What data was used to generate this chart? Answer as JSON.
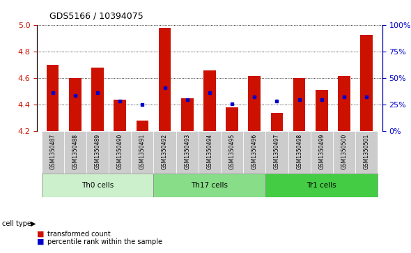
{
  "title": "GDS5166 / 10394075",
  "samples": [
    "GSM1350487",
    "GSM1350488",
    "GSM1350489",
    "GSM1350490",
    "GSM1350491",
    "GSM1350492",
    "GSM1350493",
    "GSM1350494",
    "GSM1350495",
    "GSM1350496",
    "GSM1350497",
    "GSM1350498",
    "GSM1350499",
    "GSM1350500",
    "GSM1350501"
  ],
  "transformed_count": [
    4.7,
    4.6,
    4.68,
    4.44,
    4.28,
    4.98,
    4.45,
    4.66,
    4.38,
    4.62,
    4.34,
    4.6,
    4.51,
    4.62,
    4.93
  ],
  "percentile_rank": [
    4.49,
    4.47,
    4.49,
    4.43,
    4.4,
    4.53,
    4.44,
    4.49,
    4.41,
    4.46,
    4.43,
    4.44,
    4.44,
    4.46,
    4.46
  ],
  "ylim": [
    4.2,
    5.0
  ],
  "yticks": [
    4.2,
    4.4,
    4.6,
    4.8,
    5.0
  ],
  "yticks_right": [
    0,
    25,
    50,
    75,
    100
  ],
  "yticks_right_labels": [
    "0%",
    "25%",
    "50%",
    "75%",
    "100%"
  ],
  "cell_groups": [
    {
      "label": "Th0 cells",
      "start": 0,
      "end": 4,
      "color": "#ccf0cc"
    },
    {
      "label": "Th17 cells",
      "start": 5,
      "end": 9,
      "color": "#88dd88"
    },
    {
      "label": "Tr1 cells",
      "start": 10,
      "end": 14,
      "color": "#44cc44"
    }
  ],
  "bar_color": "#cc1100",
  "dot_color": "#0000cc",
  "bar_width": 0.55,
  "background_color": "#ffffff",
  "tick_color_left": "#cc1100",
  "tick_color_right": "#0000cc",
  "base_value": 4.2,
  "grid_color": "#000000",
  "xtick_bg_color": "#cccccc",
  "legend_square_red": "#cc1100",
  "legend_square_blue": "#0000cc"
}
